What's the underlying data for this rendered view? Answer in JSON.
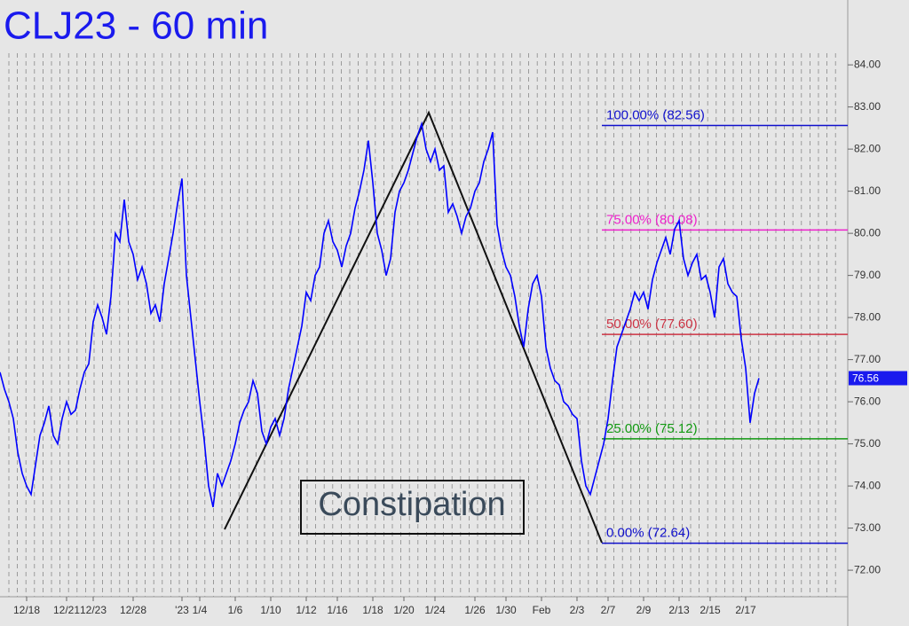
{
  "chart_data": {
    "type": "line",
    "title": "CLJ23 - 60 min",
    "annotation": "Constipation",
    "categories": [
      null,
      null,
      null,
      null,
      null,
      null,
      "12/18",
      null,
      null,
      null,
      null,
      null,
      null,
      null,
      null,
      "12/21",
      null,
      null,
      null,
      null,
      null,
      "12/23",
      null,
      null,
      null,
      null,
      null,
      null,
      null,
      null,
      "12/28",
      null,
      null,
      null,
      null,
      null,
      null,
      null,
      null,
      null,
      null,
      "'23",
      null,
      null,
      null,
      "1/4",
      null,
      null,
      null,
      null,
      null,
      null,
      null,
      "1/6",
      null,
      null,
      null,
      null,
      null,
      null,
      null,
      "1/10",
      null,
      null,
      null,
      null,
      null,
      null,
      null,
      "1/12",
      null,
      null,
      null,
      null,
      null,
      null,
      "1/16",
      null,
      null,
      null,
      null,
      null,
      null,
      null,
      "1/18",
      null,
      null,
      null,
      null,
      null,
      null,
      "1/20",
      null,
      null,
      null,
      null,
      null,
      null,
      "1/24",
      null,
      null,
      null,
      null,
      null,
      null,
      null,
      null,
      "1/26",
      null,
      null,
      null,
      null,
      null,
      null,
      "1/30",
      null,
      null,
      null,
      null,
      null,
      null,
      null,
      "Feb",
      null,
      null,
      null,
      null,
      null,
      null,
      null,
      "2/3",
      null,
      null,
      null,
      null,
      null,
      null,
      "2/7",
      null,
      null,
      null,
      null,
      null,
      null,
      null,
      "2/9",
      null,
      null,
      null,
      null,
      null,
      null,
      null,
      "2/13",
      null,
      null,
      null,
      null,
      null,
      null,
      "2/15",
      null,
      null,
      null,
      null,
      null,
      null,
      null,
      "2/17",
      null,
      null,
      null
    ],
    "series": [
      {
        "color": "#0000ff",
        "values": [
          76.7,
          76.3,
          76.0,
          75.6,
          74.8,
          74.3,
          74.0,
          73.8,
          74.5,
          75.2,
          75.5,
          75.9,
          75.2,
          75.0,
          75.6,
          76.0,
          75.7,
          75.8,
          76.3,
          76.7,
          76.9,
          77.9,
          78.3,
          78.0,
          77.6,
          78.5,
          80.0,
          79.8,
          80.8,
          79.8,
          79.5,
          78.9,
          79.2,
          78.8,
          78.1,
          78.3,
          77.9,
          78.8,
          79.4,
          80.0,
          80.7,
          81.3,
          79.0,
          78.0,
          77.0,
          76.0,
          75.1,
          74.0,
          73.5,
          74.3,
          74.0,
          74.3,
          74.6,
          75.0,
          75.5,
          75.8,
          76.0,
          76.5,
          76.2,
          75.3,
          75.0,
          75.4,
          75.6,
          75.2,
          75.6,
          76.3,
          76.8,
          77.3,
          77.8,
          78.6,
          78.4,
          79.0,
          79.2,
          80.0,
          80.3,
          79.8,
          79.6,
          79.2,
          79.7,
          80.0,
          80.6,
          81.0,
          81.5,
          82.2,
          81.2,
          80.0,
          79.6,
          79.0,
          79.4,
          80.5,
          81.0,
          81.2,
          81.5,
          81.9,
          82.3,
          82.6,
          82.0,
          81.7,
          82.0,
          81.5,
          81.6,
          80.5,
          80.7,
          80.4,
          80.0,
          80.4,
          80.6,
          81.0,
          81.2,
          81.7,
          82.0,
          82.4,
          80.2,
          79.6,
          79.2,
          79.0,
          78.5,
          77.8,
          77.3,
          78.2,
          78.8,
          79.0,
          78.5,
          77.3,
          76.8,
          76.5,
          76.4,
          76.0,
          75.9,
          75.7,
          75.6,
          74.6,
          74.0,
          73.8,
          74.2,
          74.6,
          75.0,
          75.6,
          76.5,
          77.3,
          77.6,
          77.9,
          78.2,
          78.6,
          78.4,
          78.6,
          78.2,
          78.9,
          79.3,
          79.6,
          79.9,
          79.5,
          80.1,
          80.3,
          79.4,
          79.0,
          79.3,
          79.5,
          78.9,
          79.0,
          78.6,
          78.0,
          79.2,
          79.4,
          78.8,
          78.6,
          78.5,
          77.5,
          76.8,
          75.5,
          76.2,
          76.56
        ]
      }
    ],
    "last_price": 76.56,
    "levels": [
      {
        "label": "100.00% (82.56)",
        "value": 82.56,
        "color": "#1010cc"
      },
      {
        "label": "75.00% (80.08)",
        "value": 80.08,
        "color": "#ee22cc"
      },
      {
        "label": "50.00% (77.60)",
        "value": 77.6,
        "color": "#cc3344"
      },
      {
        "label": "25.00% (75.12)",
        "value": 75.12,
        "color": "#119911"
      },
      {
        "label": "0.00% (72.64)",
        "value": 72.64,
        "color": "#1010cc"
      }
    ],
    "ylim": [
      71.37,
      85.54
    ],
    "yticks": [
      {
        "value": 72,
        "label": "72.00"
      },
      {
        "value": 73,
        "label": "73.00"
      },
      {
        "value": 74,
        "label": "74.00"
      },
      {
        "value": 75,
        "label": "75.00"
      },
      {
        "value": 76,
        "label": "76.00"
      },
      {
        "value": 77,
        "label": "77.00"
      },
      {
        "value": 78,
        "label": "78.00"
      },
      {
        "value": 79,
        "label": "79.00"
      },
      {
        "value": 80,
        "label": "80.00"
      },
      {
        "value": 81,
        "label": "81.00"
      },
      {
        "value": 82,
        "label": "82.00"
      },
      {
        "value": 83,
        "label": "83.00"
      },
      {
        "value": 84,
        "label": "84.00"
      }
    ]
  }
}
